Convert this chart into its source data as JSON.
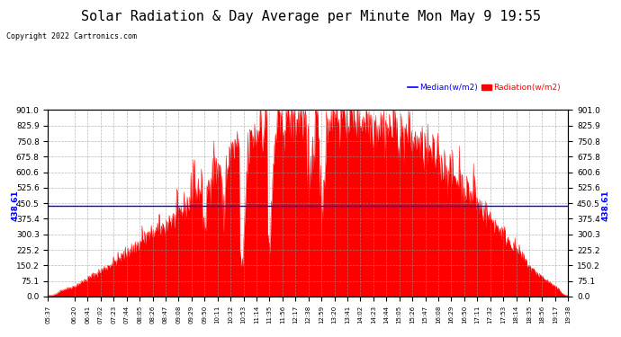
{
  "title": "Solar Radiation & Day Average per Minute Mon May 9 19:55",
  "copyright": "Copyright 2022 Cartronics.com",
  "median_label": "Median(w/m2)",
  "radiation_label": "Radiation(w/m2)",
  "median_value": 438.61,
  "y_tick_vals": [
    0.0,
    75.1,
    150.2,
    225.2,
    300.3,
    375.4,
    450.5,
    525.6,
    600.6,
    675.8,
    750.8,
    825.9,
    901.0
  ],
  "y_tick_labels": [
    "0.0",
    "75.1",
    "150.2",
    "225.2",
    "300.3",
    "375.4",
    "450.5",
    "525.6",
    "600.6",
    "675.8",
    "750.8",
    "825.9",
    "901.0"
  ],
  "ymin": 0.0,
  "ymax": 901.0,
  "background_color": "#ffffff",
  "plot_background": "#ffffff",
  "radiation_color": "#ff0000",
  "median_line_color": "#0000ff",
  "grid_color": "#999999",
  "title_fontsize": 11,
  "start_minutes": 337,
  "end_minutes": 1178,
  "x_tick_labels": [
    "05:37",
    "06:20",
    "06:41",
    "07:02",
    "07:23",
    "07:44",
    "08:05",
    "08:26",
    "08:47",
    "09:08",
    "09:29",
    "09:50",
    "10:11",
    "10:32",
    "10:53",
    "11:14",
    "11:35",
    "11:56",
    "12:17",
    "12:38",
    "12:59",
    "13:20",
    "13:41",
    "14:02",
    "14:23",
    "14:44",
    "15:05",
    "15:26",
    "15:47",
    "16:08",
    "16:29",
    "16:50",
    "17:11",
    "17:32",
    "17:53",
    "18:14",
    "18:35",
    "18:56",
    "19:17",
    "19:38"
  ],
  "x_tick_minutes": [
    337,
    380,
    401,
    422,
    443,
    464,
    485,
    506,
    527,
    548,
    569,
    590,
    611,
    632,
    653,
    674,
    695,
    716,
    737,
    758,
    779,
    800,
    821,
    842,
    863,
    884,
    905,
    926,
    947,
    968,
    989,
    1010,
    1031,
    1052,
    1073,
    1094,
    1115,
    1136,
    1157,
    1178
  ]
}
